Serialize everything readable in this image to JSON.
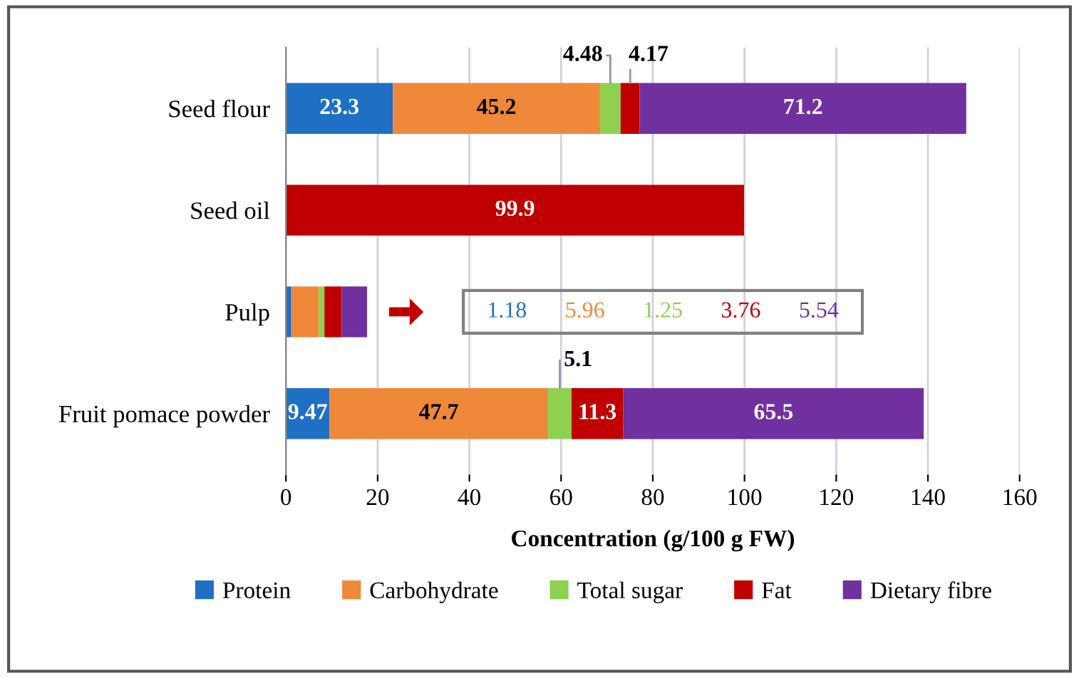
{
  "chart_data": {
    "type": "bar",
    "orientation": "horizontal",
    "stacked": true,
    "categories": [
      "Seed flour",
      "Seed oil",
      "Pulp",
      "Fruit pomace powder"
    ],
    "series": [
      {
        "name": "Protein",
        "color": "#1f6fc5",
        "values": [
          23.3,
          null,
          1.18,
          9.47
        ],
        "value_labels": [
          "23.3",
          null,
          null,
          "9.47"
        ]
      },
      {
        "name": "Carbohydrate",
        "color": "#f0883a",
        "values": [
          45.2,
          null,
          5.96,
          47.7
        ],
        "value_labels": [
          "45.2",
          null,
          null,
          "47.7"
        ]
      },
      {
        "name": "Total sugar",
        "color": "#8fd14f",
        "values": [
          4.48,
          null,
          1.25,
          5.1
        ],
        "value_labels": [
          "4.48",
          null,
          null,
          "5.1"
        ]
      },
      {
        "name": "Fat",
        "color": "#c00000",
        "values": [
          4.17,
          99.9,
          3.76,
          11.3
        ],
        "value_labels": [
          "4.17",
          "99.9",
          null,
          "11.3"
        ]
      },
      {
        "name": "Dietary fibre",
        "color": "#7030a0",
        "values": [
          71.2,
          null,
          5.54,
          65.5
        ],
        "value_labels": [
          "71.2",
          null,
          null,
          "65.5"
        ]
      }
    ],
    "annotations": [
      "1.18",
      "5.96",
      "1.25",
      "3.76",
      "5.54"
    ],
    "xlabel": "Concentration (g/100 g FW)",
    "xlim": [
      0,
      160
    ],
    "xticks": [
      0,
      20,
      40,
      60,
      80,
      100,
      120,
      140,
      160
    ],
    "grid": "x",
    "legend": "bottom"
  }
}
